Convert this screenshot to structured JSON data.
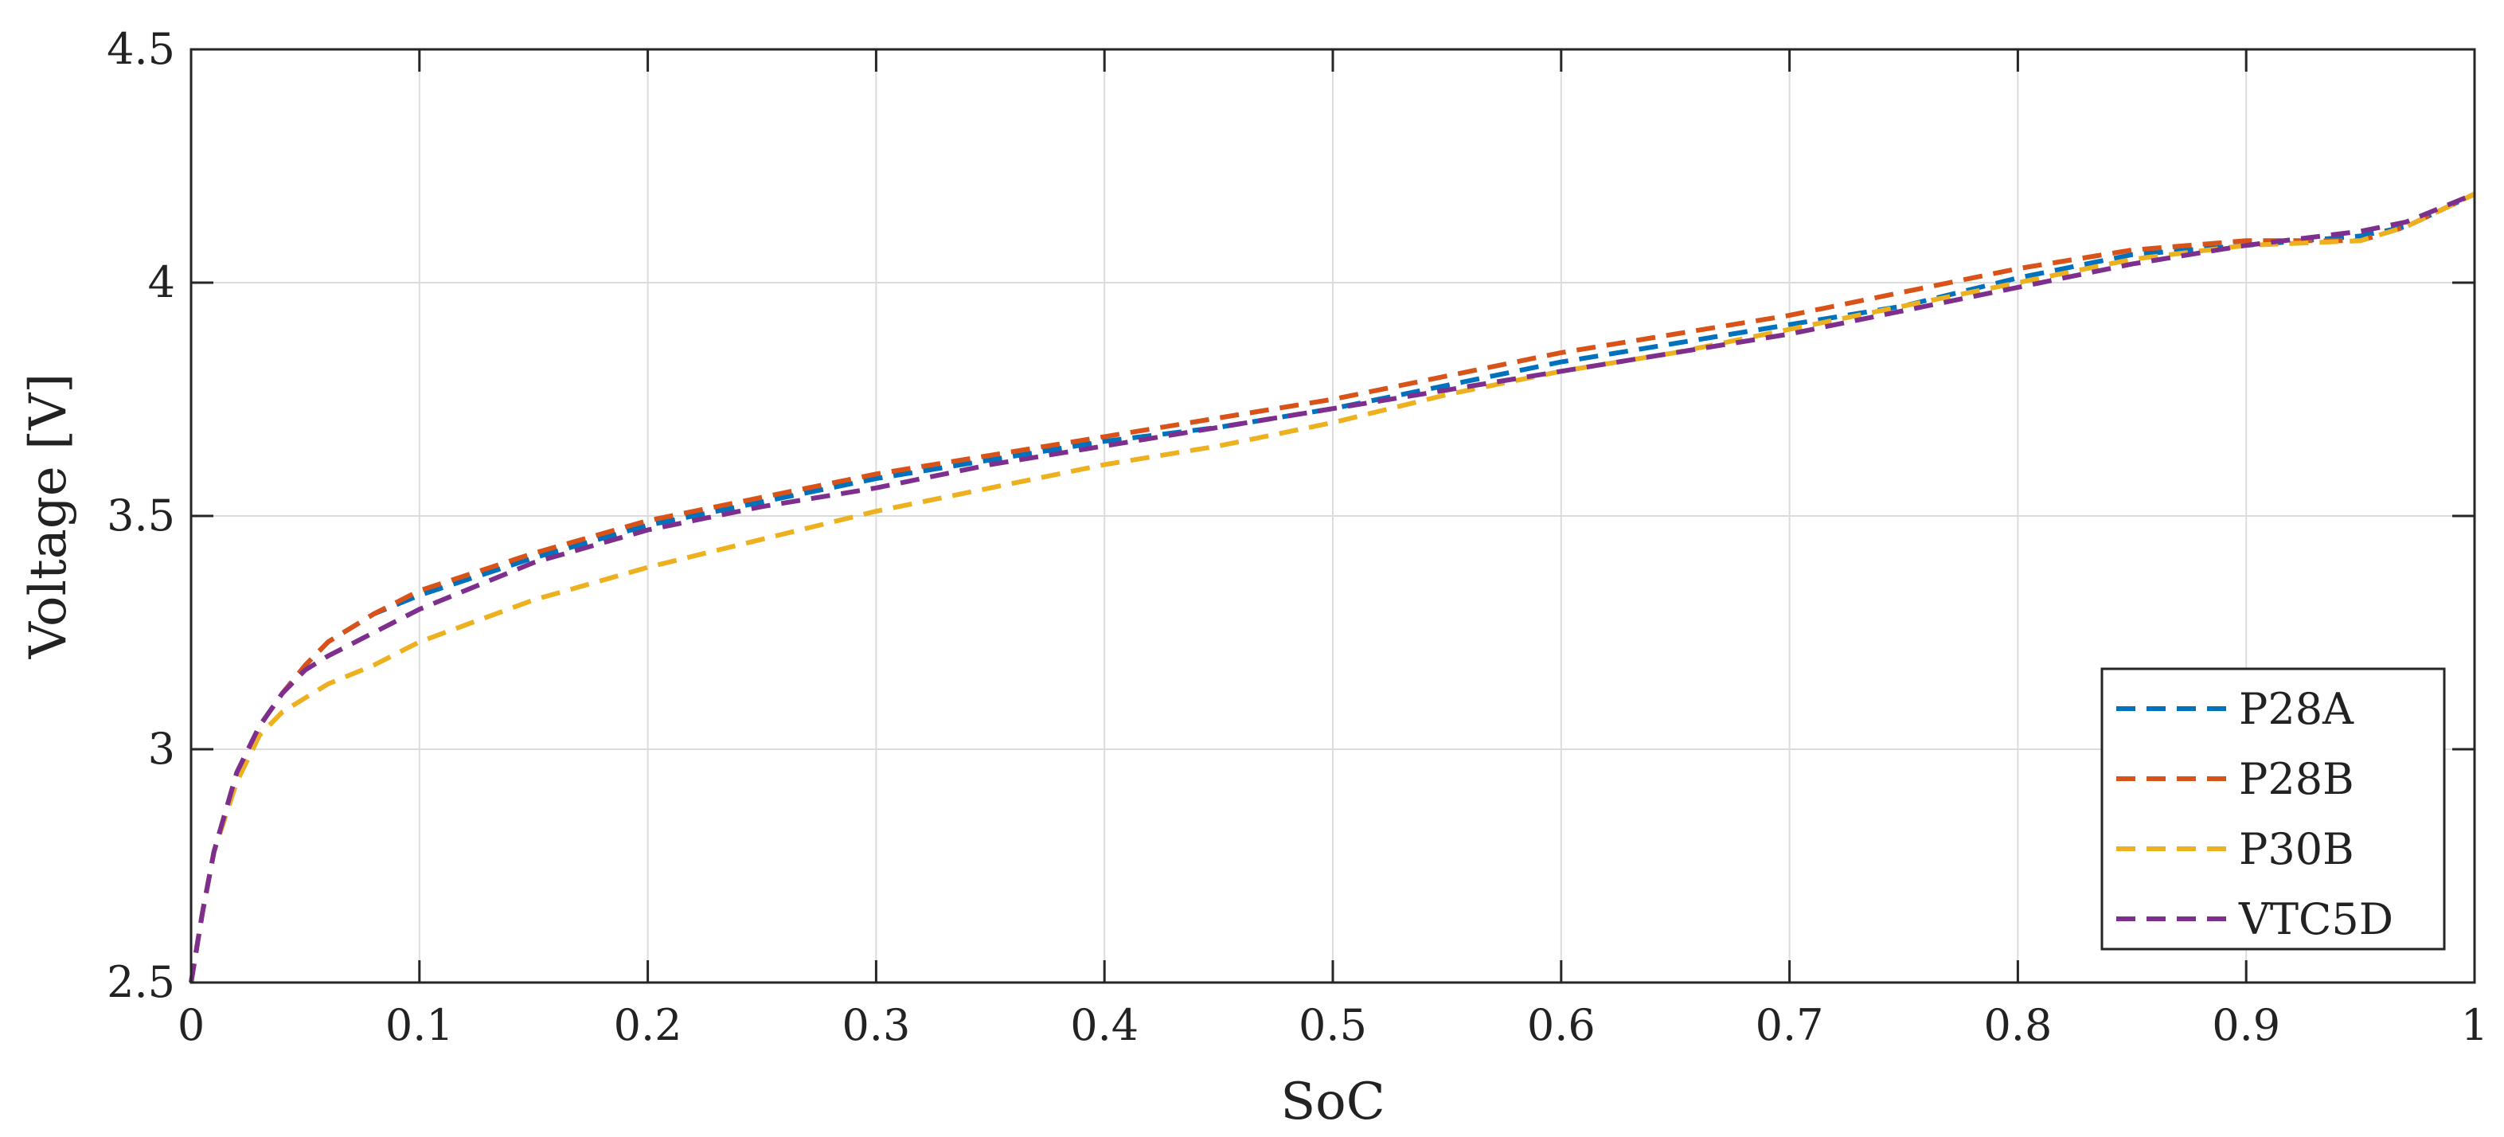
{
  "chart_data": {
    "type": "line",
    "title": "",
    "xlabel": "SoC",
    "ylabel": "Voltage [V]",
    "xlim": [
      0,
      1
    ],
    "ylim": [
      2.5,
      4.5
    ],
    "xticks": [
      "0",
      "0.1",
      "0.2",
      "0.3",
      "0.4",
      "0.5",
      "0.6",
      "0.7",
      "0.8",
      "0.9",
      "1"
    ],
    "yticks": [
      "2.5",
      "3",
      "3.5",
      "4",
      "4.5"
    ],
    "grid": true,
    "legend_position": "bottom-right",
    "series": [
      {
        "name": "P28A",
        "color": "#0072BD",
        "line_style": "dashed",
        "x": [
          0,
          0.005,
          0.01,
          0.02,
          0.03,
          0.04,
          0.05,
          0.06,
          0.08,
          0.1,
          0.15,
          0.2,
          0.25,
          0.3,
          0.35,
          0.4,
          0.45,
          0.5,
          0.55,
          0.6,
          0.65,
          0.7,
          0.75,
          0.8,
          0.85,
          0.9,
          0.95,
          0.97,
          1.0
        ],
        "y": [
          2.5,
          2.65,
          2.78,
          2.95,
          3.05,
          3.12,
          3.18,
          3.23,
          3.29,
          3.33,
          3.41,
          3.48,
          3.53,
          3.58,
          3.62,
          3.66,
          3.69,
          3.73,
          3.78,
          3.83,
          3.87,
          3.91,
          3.95,
          4.01,
          4.06,
          4.08,
          4.1,
          4.12,
          4.19
        ]
      },
      {
        "name": "P28B",
        "color": "#D95319",
        "line_style": "dashed",
        "x": [
          0,
          0.005,
          0.01,
          0.02,
          0.03,
          0.04,
          0.05,
          0.06,
          0.08,
          0.1,
          0.15,
          0.2,
          0.25,
          0.3,
          0.35,
          0.4,
          0.45,
          0.5,
          0.55,
          0.6,
          0.65,
          0.7,
          0.75,
          0.8,
          0.85,
          0.9,
          0.95,
          0.97,
          1.0
        ],
        "y": [
          2.5,
          2.65,
          2.78,
          2.95,
          3.05,
          3.12,
          3.18,
          3.23,
          3.29,
          3.34,
          3.42,
          3.49,
          3.54,
          3.59,
          3.63,
          3.67,
          3.71,
          3.75,
          3.8,
          3.85,
          3.89,
          3.93,
          3.98,
          4.03,
          4.07,
          4.09,
          4.09,
          4.12,
          4.19
        ]
      },
      {
        "name": "P30B",
        "color": "#EDB120",
        "line_style": "dashed",
        "x": [
          0,
          0.005,
          0.01,
          0.02,
          0.03,
          0.04,
          0.05,
          0.06,
          0.08,
          0.1,
          0.15,
          0.2,
          0.25,
          0.3,
          0.35,
          0.4,
          0.45,
          0.5,
          0.55,
          0.6,
          0.65,
          0.7,
          0.75,
          0.8,
          0.85,
          0.9,
          0.95,
          0.97,
          1.0
        ],
        "y": [
          2.5,
          2.65,
          2.78,
          2.93,
          3.03,
          3.08,
          3.11,
          3.14,
          3.18,
          3.23,
          3.32,
          3.39,
          3.45,
          3.51,
          3.56,
          3.61,
          3.65,
          3.7,
          3.76,
          3.81,
          3.85,
          3.9,
          3.95,
          4.0,
          4.05,
          4.08,
          4.09,
          4.12,
          4.19
        ]
      },
      {
        "name": "VTC5D",
        "color": "#7E2F8E",
        "line_style": "dashed",
        "x": [
          0,
          0.005,
          0.01,
          0.02,
          0.03,
          0.04,
          0.05,
          0.06,
          0.08,
          0.1,
          0.15,
          0.2,
          0.25,
          0.3,
          0.35,
          0.4,
          0.45,
          0.5,
          0.55,
          0.6,
          0.65,
          0.7,
          0.75,
          0.8,
          0.85,
          0.9,
          0.95,
          0.97,
          1.0
        ],
        "y": [
          2.5,
          2.65,
          2.78,
          2.95,
          3.05,
          3.12,
          3.17,
          3.2,
          3.25,
          3.3,
          3.4,
          3.47,
          3.52,
          3.56,
          3.61,
          3.65,
          3.69,
          3.73,
          3.77,
          3.81,
          3.85,
          3.89,
          3.94,
          3.99,
          4.04,
          4.08,
          4.11,
          4.13,
          4.19
        ]
      }
    ]
  }
}
